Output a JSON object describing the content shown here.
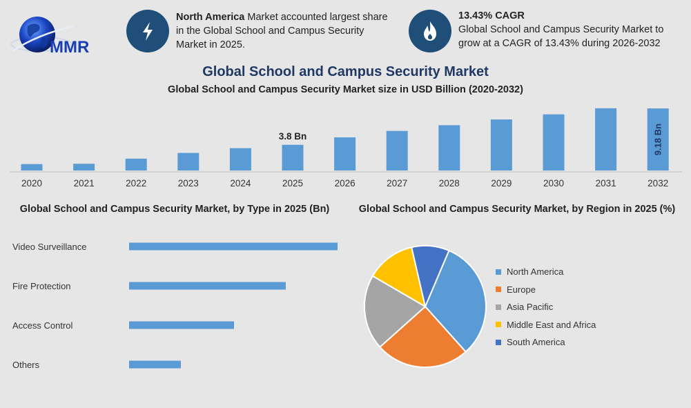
{
  "brand": {
    "logo_text": "MMR"
  },
  "highlights": [
    {
      "icon": "lightning-icon",
      "bold": "North America",
      "text": " Market accounted largest share in the Global School and Campus Security Market in 2025."
    },
    {
      "icon": "flame-icon",
      "bold": "13.43% CAGR",
      "text": "Global School and Campus Security Market to grow at a CAGR of 13.43% during 2026-2032"
    }
  ],
  "title": "Global School and Campus Security Market",
  "colors": {
    "bar": "#5b9bd5",
    "title": "#1f3864",
    "icon_bg": "#1f4e79"
  },
  "chart_data": [
    {
      "type": "bar",
      "title": "Global School and Campus Security Market size in USD Billion (2020-2032)",
      "categories": [
        "2020",
        "2021",
        "2022",
        "2023",
        "2024",
        "2025",
        "2026",
        "2027",
        "2028",
        "2029",
        "2030",
        "2031",
        "2032"
      ],
      "values": [
        0.95,
        1.0,
        1.75,
        2.6,
        3.3,
        3.8,
        4.9,
        5.85,
        6.7,
        7.55,
        8.3,
        9.2,
        9.18
      ],
      "data_labels": {
        "2025": "3.8 Bn",
        "2032": "9.18 Bn"
      },
      "ylim": [
        0,
        10
      ],
      "grid": false
    },
    {
      "type": "bar",
      "orientation": "horizontal",
      "title": "Global School and Campus Security Market, by Type in 2025 (Bn)",
      "categories": [
        "Video Surveillance",
        "Fire Protection",
        "Access Control",
        "Others"
      ],
      "values": [
        1.53,
        1.15,
        0.77,
        0.38
      ],
      "grid": false
    },
    {
      "type": "pie",
      "title": "Global School and Campus Security Market, by Region in 2025 (%)",
      "labels": [
        "North America",
        "Europe",
        "Asia Pacific",
        "Middle East and Africa",
        "South America"
      ],
      "values": [
        32,
        25,
        20,
        13,
        10
      ],
      "start_angle": 23,
      "colors": [
        "#5b9bd5",
        "#ed7d31",
        "#a5a5a5",
        "#ffc000",
        "#4472c4"
      ],
      "legend_position": "right"
    }
  ]
}
